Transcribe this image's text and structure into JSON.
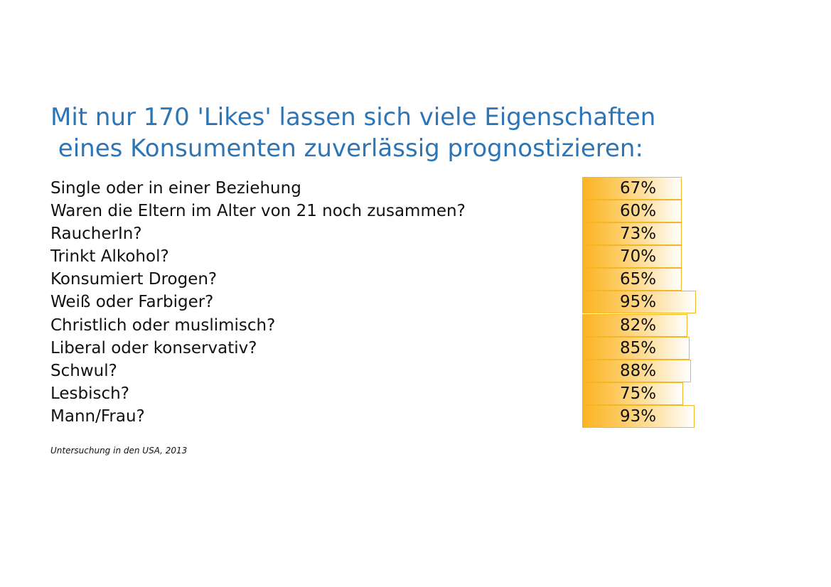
{
  "chart_data": {
    "type": "table",
    "title": "Mit nur 170 'Likes' lassen sich viele Eigenschaften\n eines Konsumenten zuverlässig prognostizieren:",
    "rows": [
      {
        "label": "Single oder in einer Beziehung",
        "value": 67,
        "value_label": "67%"
      },
      {
        "label": "Waren die Eltern im Alter von 21 noch zusammen?",
        "value": 60,
        "value_label": "60%"
      },
      {
        "label": "RaucherIn?",
        "value": 73,
        "value_label": "73%"
      },
      {
        "label": "Trinkt Alkohol?",
        "value": 70,
        "value_label": "70%"
      },
      {
        "label": "Konsumiert Drogen?",
        "value": 65,
        "value_label": "65%"
      },
      {
        "label": "Weiß oder Farbiger?",
        "value": 95,
        "value_label": "95%"
      },
      {
        "label": "Christlich oder muslimisch?",
        "value": 82,
        "value_label": "82%"
      },
      {
        "label": "Liberal oder konservativ?",
        "value": 85,
        "value_label": "85%"
      },
      {
        "label": "Schwul?",
        "value": 88,
        "value_label": "88%"
      },
      {
        "label": "Lesbisch?",
        "value": 75,
        "value_label": "75%"
      },
      {
        "label": "Mann/Frau?",
        "value": 93,
        "value_label": "93%"
      }
    ],
    "source": "Untersuchung in den USA, 2013",
    "colors": {
      "title": "#2e75b6",
      "bar": "#fbb423",
      "bar_border": "#f5b625"
    }
  }
}
